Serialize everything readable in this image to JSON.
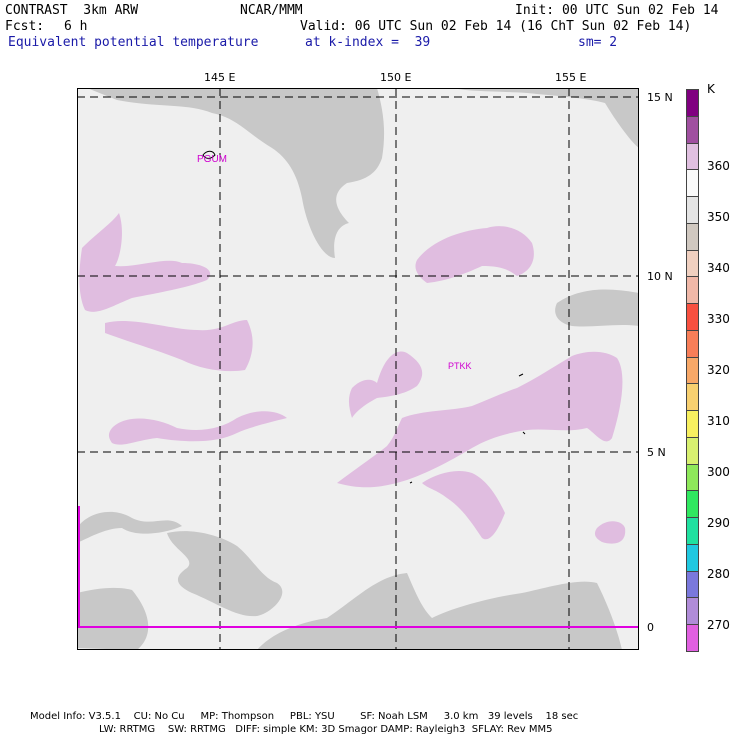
{
  "header": {
    "model": "CONTRAST  3km ARW",
    "center": "NCAR/MMM",
    "init": "Init: 00 UTC Sun 02 Feb 14",
    "fcst_label": "Fcst:",
    "fcst_value": "6 h",
    "valid": "Valid: 06 UTC Sun 02 Feb 14 (16 ChT Sun 02 Feb 14)",
    "field": "Equivalent potential temperature",
    "level": "at k-index =  39",
    "smoothing": "sm= 2"
  },
  "map": {
    "lon_ticks": [
      "145 E",
      "150 E",
      "155 E"
    ],
    "lat_ticks": [
      "15 N",
      "10 N",
      "5 N",
      "0"
    ],
    "stations": [
      "PGUM",
      "PTKK"
    ],
    "colors": {
      "background": "#efefef",
      "gray_band": "#c8c8c8",
      "lavender_band": "#e0bde0",
      "station": "#d000d0",
      "boundary": "#e000e0"
    }
  },
  "colorbar": {
    "unit": "K",
    "labels": [
      "360",
      "350",
      "340",
      "330",
      "320",
      "310",
      "300",
      "290",
      "280",
      "270"
    ],
    "colors": [
      "#e060e0",
      "#b08cd8",
      "#7a78dc",
      "#20c8e0",
      "#20e0a0",
      "#30e860",
      "#8ee85a",
      "#d8f070",
      "#f8f060",
      "#f8d070",
      "#f8a868",
      "#f87e58",
      "#f85040",
      "#f0b8a8",
      "#f0d0c0",
      "#d0c8c0",
      "#e4e4e4",
      "#fafafa",
      "#e0c0e0",
      "#a050a0",
      "#800080"
    ]
  },
  "footer": {
    "line1": "Model Info: V3.5.1    CU: No Cu     MP: Thompson     PBL: YSU        SF: Noah LSM     3.0 km   39 levels    18 sec",
    "line2": "LW: RRTMG    SW: RRTMG   DIFF: simple KM: 3D Smagor DAMP: Rayleigh3  SFLAY: Rev MM5"
  }
}
